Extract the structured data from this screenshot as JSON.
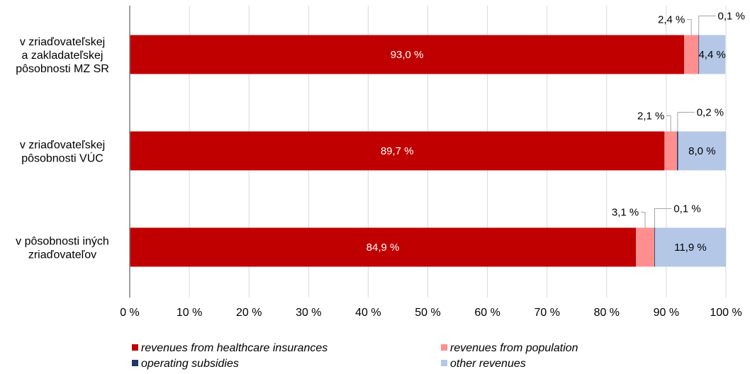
{
  "chart_data": {
    "type": "bar",
    "orientation": "horizontal",
    "stacked": true,
    "percent_stacked": true,
    "categories": [
      [
        "v zriaďovateľskej",
        "a zakladateľskej",
        "pôsobnosti MZ SR"
      ],
      [
        "v zriaďovateľskej",
        "pôsobnosti VÚC"
      ],
      [
        "v pôsobnosti iných",
        "zriaďovateľov"
      ]
    ],
    "series": [
      {
        "name": "revenues from healthcare insurances",
        "color": "#C00000",
        "values": [
          93.0,
          89.7,
          84.9
        ],
        "labels": [
          "93,0 %",
          "89,7 %",
          "84,9 %"
        ]
      },
      {
        "name": "revenues from population",
        "color": "#FF8F8F",
        "values": [
          2.4,
          2.1,
          3.1
        ],
        "labels": [
          "2,4 %",
          "2,1 %",
          "3,1 %"
        ]
      },
      {
        "name": "operating subsidies",
        "color": "#1F3864",
        "values": [
          0.1,
          0.2,
          0.1
        ],
        "labels": [
          "0,1 %",
          "0,2 %",
          "0,1 %"
        ]
      },
      {
        "name": "other revenues",
        "color": "#B4C7E7",
        "values": [
          4.4,
          8.0,
          11.9
        ],
        "labels": [
          "4,4 %",
          "8,0 %",
          "11,9 %"
        ]
      }
    ],
    "xlim": [
      0,
      100
    ],
    "xticks": [
      "0 %",
      "10 %",
      "20 %",
      "30 %",
      "40 %",
      "50 %",
      "60 %",
      "70 %",
      "80 %",
      "90 %",
      "100 %"
    ],
    "grid": true,
    "legend_position": "bottom"
  }
}
